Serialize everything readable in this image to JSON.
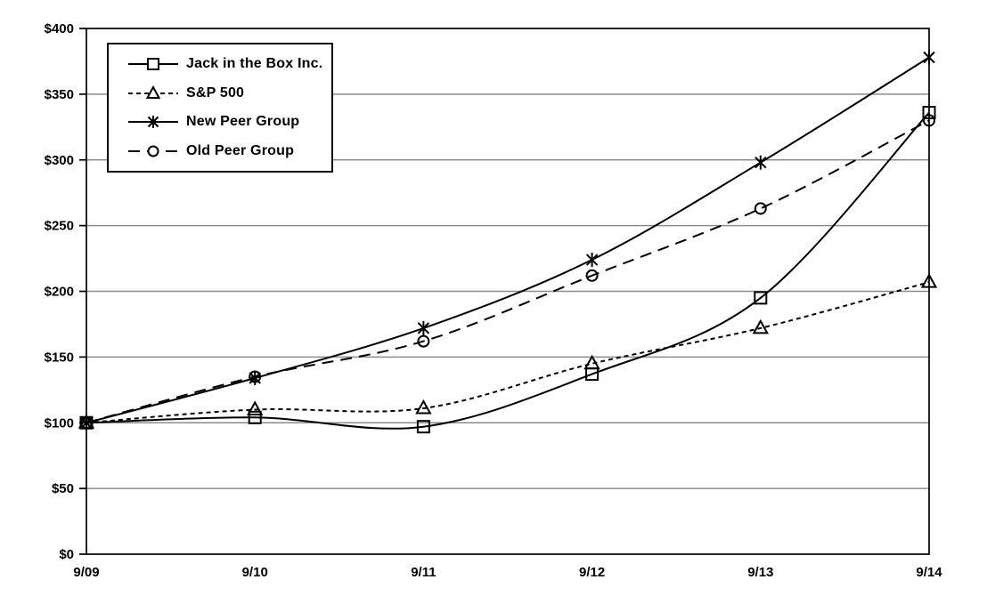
{
  "chart_data": {
    "type": "line",
    "categories": [
      "9/09",
      "9/10",
      "9/11",
      "9/12",
      "9/13",
      "9/14"
    ],
    "series": [
      {
        "name": "Jack in the Box Inc.",
        "marker": "square",
        "dash": "solid",
        "values": [
          100,
          104,
          97,
          137,
          195,
          336
        ]
      },
      {
        "name": "S&P 500",
        "marker": "triangle",
        "dash": "dashed",
        "values": [
          100,
          110,
          111,
          145,
          172,
          207
        ]
      },
      {
        "name": "New Peer Group",
        "marker": "asterisk",
        "dash": "solid",
        "values": [
          100,
          134,
          172,
          224,
          298,
          378
        ]
      },
      {
        "name": "Old Peer Group",
        "marker": "circle",
        "dash": "long-dash",
        "values": [
          100,
          135,
          162,
          212,
          263,
          330
        ]
      }
    ],
    "title": "",
    "xlabel": "",
    "ylabel": "",
    "ylim": [
      0,
      400
    ],
    "y_tick_step": 50,
    "y_tick_labels": [
      "$0",
      "$50",
      "$100",
      "$150",
      "$200",
      "$250",
      "$300",
      "$350",
      "$400"
    ],
    "grid": true,
    "legend_position": "top-left",
    "line_style": "smoothed",
    "colors": {
      "line": "#000000",
      "grid": "#8c8c8c",
      "background": "#ffffff"
    }
  }
}
